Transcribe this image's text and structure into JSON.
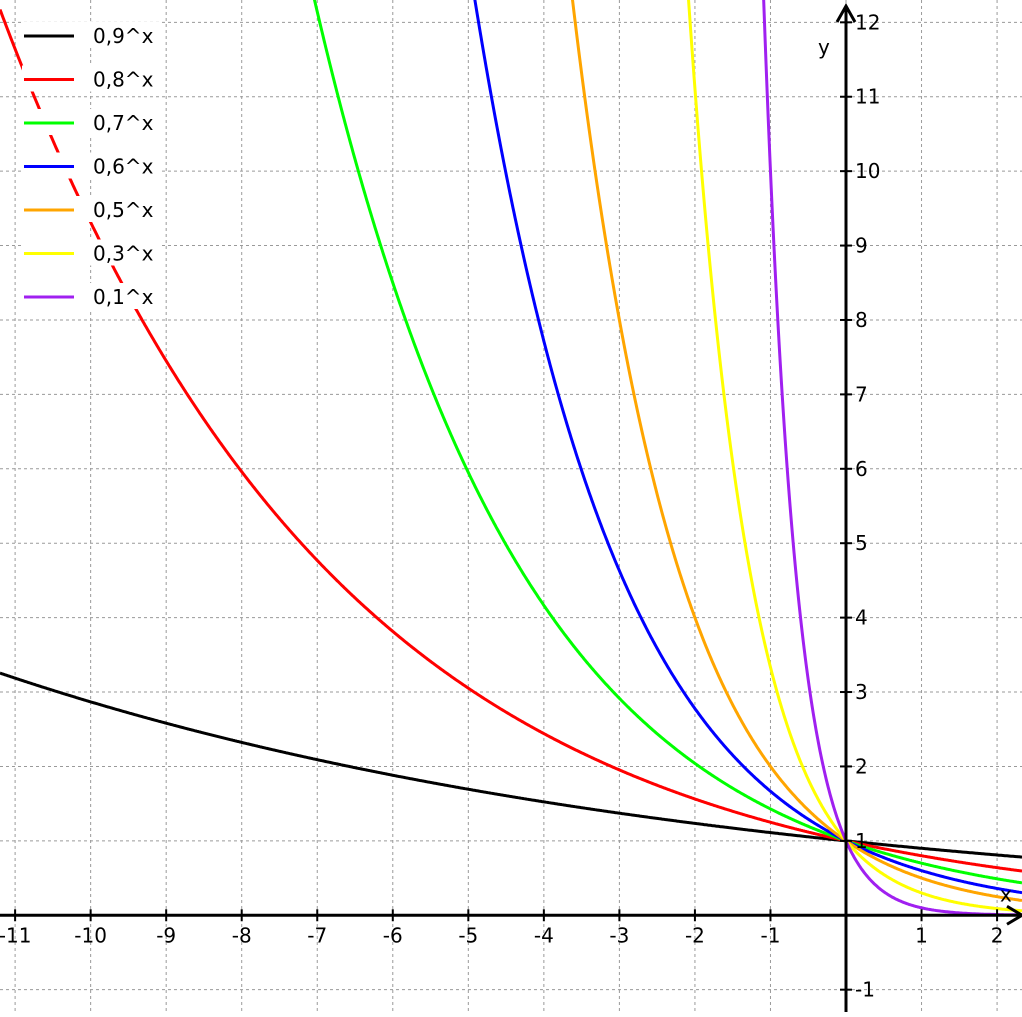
{
  "chart_data": {
    "type": "line",
    "title": "",
    "xlabel": "x",
    "ylabel": "y",
    "xlim": [
      -11.2,
      2.33
    ],
    "ylim": [
      -1.3,
      12.3
    ],
    "grid": true,
    "legend_position": "top-left",
    "x_ticks": [
      -11,
      -10,
      -9,
      -8,
      -7,
      -6,
      -5,
      -4,
      -3,
      -2,
      -1,
      1,
      2
    ],
    "y_ticks": [
      -1,
      1,
      2,
      3,
      4,
      5,
      6,
      7,
      8,
      9,
      10,
      11,
      12
    ],
    "series": [
      {
        "name": "0,9^x",
        "base": 0.9,
        "color": "#000000"
      },
      {
        "name": "0,8^x",
        "base": 0.8,
        "color": "#ff0000"
      },
      {
        "name": "0,7^x",
        "base": 0.7,
        "color": "#00ff00"
      },
      {
        "name": "0,6^x",
        "base": 0.6,
        "color": "#0000ff"
      },
      {
        "name": "0,5^x",
        "base": 0.5,
        "color": "#ffa500"
      },
      {
        "name": "0,3^x",
        "base": 0.3,
        "color": "#ffff00"
      },
      {
        "name": "0,1^x",
        "base": 0.1,
        "color": "#a020f0"
      }
    ]
  }
}
